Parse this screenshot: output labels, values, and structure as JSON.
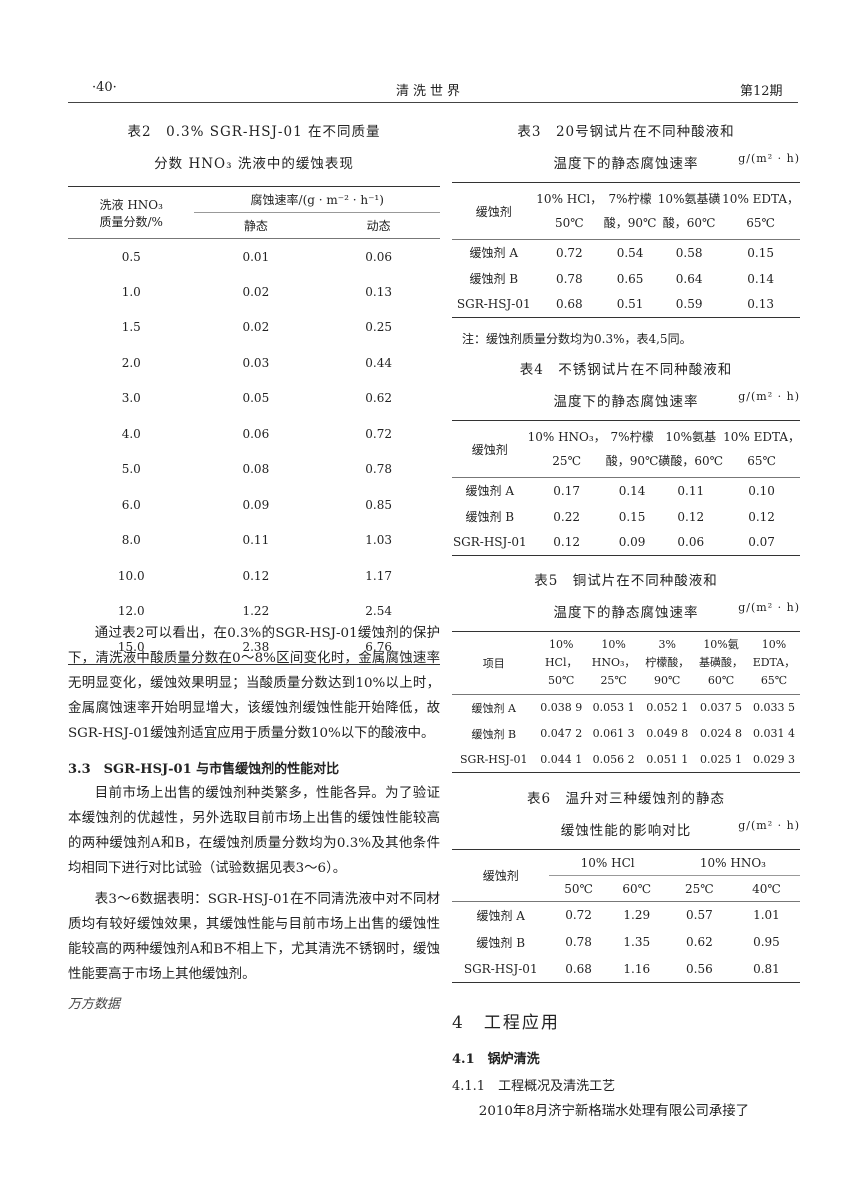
{
  "header": {
    "page_number": "·40·",
    "journal": "清洗世界",
    "issue": "第12期"
  },
  "table2": {
    "title_line1": "表2　0.3% SGR-HSJ-01 在不同质量",
    "title_line2": "分数 HNO₃ 洗液中的缓蚀表现",
    "col1_header_line1": "洗液 HNO₃",
    "col1_header_line2": "质量分数/%",
    "group_header": "腐蚀速率/(g · m⁻² · h⁻¹)",
    "sub_headers": [
      "静态",
      "动态"
    ],
    "rows": [
      [
        "0.5",
        "0.01",
        "0.06"
      ],
      [
        "1.0",
        "0.02",
        "0.13"
      ],
      [
        "1.5",
        "0.02",
        "0.25"
      ],
      [
        "2.0",
        "0.03",
        "0.44"
      ],
      [
        "3.0",
        "0.05",
        "0.62"
      ],
      [
        "4.0",
        "0.06",
        "0.72"
      ],
      [
        "5.0",
        "0.08",
        "0.78"
      ],
      [
        "6.0",
        "0.09",
        "0.85"
      ],
      [
        "8.0",
        "0.11",
        "1.03"
      ],
      [
        "10.0",
        "0.12",
        "1.17"
      ],
      [
        "12.0",
        "1.22",
        "2.54"
      ],
      [
        "15.0",
        "2.38",
        "6.76"
      ]
    ]
  },
  "left_text": {
    "para1": "通过表2可以看出，在0.3%的SGR-HSJ-01缓蚀剂的保护下，清洗液中酸质量分数在0～8%区间变化时，金属腐蚀速率无明显变化，缓蚀效果明显；当酸质量分数达到10%以上时，金属腐蚀速率开始明显增大，该缓蚀剂缓蚀性能开始降低，故SGR-HSJ-01缓蚀剂适宜应用于质量分数10%以下的酸液中。",
    "section_3_3": "3.3　SGR-HSJ-01 与市售缓蚀剂的性能对比",
    "para2": "目前市场上出售的缓蚀剂种类繁多，性能各异。为了验证本缓蚀剂的优越性，另外选取目前市场上出售的缓蚀性能较高的两种缓蚀剂A和B，在缓蚀剂质量分数均为0.3%及其他条件均相同下进行对比试验（试验数据见表3～6）。",
    "para3": "表3～6数据表明：SGR-HSJ-01在不同清洗液中对不同材质均有较好缓蚀效果，其缓蚀性能与目前市场上出售的缓蚀性能较高的两种缓蚀剂A和B不相上下，尤其清洗不锈钢时，缓蚀性能要高于市场上其他缓蚀剂。",
    "watermark": "万方数据"
  },
  "table3": {
    "title_line1": "表3　20号钢试片在不同种酸液和",
    "title_line2": "温度下的静态腐蚀速率",
    "unit": "g/(m² · h)",
    "row_header": "缓蚀剂",
    "columns": [
      [
        "10% HCl，",
        "50℃"
      ],
      [
        "7%柠檬",
        "酸，90℃"
      ],
      [
        "10%氨基磺",
        "酸，60℃"
      ],
      [
        "10% EDTA，",
        "65℃"
      ]
    ],
    "rows": [
      [
        "缓蚀剂 A",
        "0.72",
        "0.54",
        "0.58",
        "0.15"
      ],
      [
        "缓蚀剂 B",
        "0.78",
        "0.65",
        "0.64",
        "0.14"
      ],
      [
        "SGR-HSJ-01",
        "0.68",
        "0.51",
        "0.59",
        "0.13"
      ]
    ],
    "note": "注：缓蚀剂质量分数均为0.3%，表4,5同。"
  },
  "table4": {
    "title_line1": "表4　不锈钢试片在不同种酸液和",
    "title_line2": "温度下的静态腐蚀速率",
    "unit": "g/(m² · h)",
    "row_header": "缓蚀剂",
    "columns": [
      [
        "10% HNO₃，",
        "25℃"
      ],
      [
        "7%柠檬",
        "酸，90℃"
      ],
      [
        "10%氨基",
        "磺酸，60℃"
      ],
      [
        "10% EDTA，",
        "65℃"
      ]
    ],
    "rows": [
      [
        "缓蚀剂 A",
        "0.17",
        "0.14",
        "0.11",
        "0.10"
      ],
      [
        "缓蚀剂 B",
        "0.22",
        "0.15",
        "0.12",
        "0.12"
      ],
      [
        "SGR-HSJ-01",
        "0.12",
        "0.09",
        "0.06",
        "0.07"
      ]
    ]
  },
  "table5": {
    "title_line1": "表5　铜试片在不同种酸液和",
    "title_line2": "温度下的静态腐蚀速率",
    "unit": "g/(m² · h)",
    "row_header": "项目",
    "columns": [
      [
        "10%",
        "HCl，",
        "50℃"
      ],
      [
        "10%",
        "HNO₃，",
        "25℃"
      ],
      [
        "3%",
        "柠檬酸，",
        "90℃"
      ],
      [
        "10%氨",
        "基磺酸，",
        "60℃"
      ],
      [
        "10%",
        "EDTA，",
        "65℃"
      ]
    ],
    "rows": [
      [
        "缓蚀剂 A",
        "0.038 9",
        "0.053 1",
        "0.052 1",
        "0.037 5",
        "0.033 5"
      ],
      [
        "缓蚀剂 B",
        "0.047 2",
        "0.061 3",
        "0.049 8",
        "0.024 8",
        "0.031 4"
      ],
      [
        "SGR-HSJ-01",
        "0.044 1",
        "0.056 2",
        "0.051 1",
        "0.025 1",
        "0.029 3"
      ]
    ]
  },
  "table6": {
    "title_line1": "表6　温升对三种缓蚀剂的静态",
    "title_line2": "缓蚀性能的影响对比",
    "unit": "g/(m² · h)",
    "row_header": "缓蚀剂",
    "groups": [
      "10% HCl",
      "10% HNO₃"
    ],
    "sub_headers": [
      "50℃",
      "60℃",
      "25℃",
      "40℃"
    ],
    "rows": [
      [
        "缓蚀剂 A",
        "0.72",
        "1.29",
        "0.57",
        "1.01"
      ],
      [
        "缓蚀剂 B",
        "0.78",
        "1.35",
        "0.62",
        "0.95"
      ],
      [
        "SGR-HSJ-01",
        "0.68",
        "1.16",
        "0.56",
        "0.81"
      ]
    ]
  },
  "right_text": {
    "section_4": "4　工程应用",
    "section_4_1": "4.1　锅炉清洗",
    "section_4_1_1": "4.1.1　工程概况及清洗工艺",
    "para1": "2010年8月济宁新格瑞水处理有限公司承接了"
  }
}
